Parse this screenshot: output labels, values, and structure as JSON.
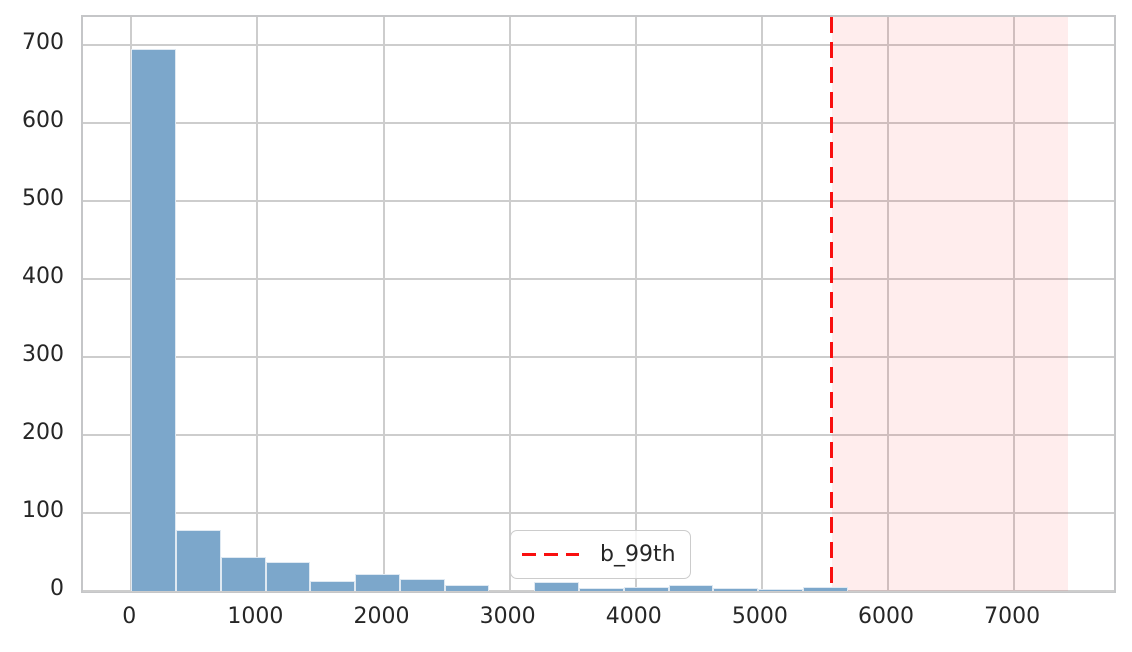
{
  "figure": {
    "background": "#ffffff",
    "legend": {
      "entries": [
        {
          "label": "b_99th",
          "marker": "red-dashed-line"
        }
      ],
      "position": "lower center"
    }
  },
  "chart_data": {
    "type": "bar",
    "subtype": "histogram",
    "title": "",
    "xlabel": "",
    "ylabel": "",
    "bin_start": 0,
    "bin_width": 355,
    "counts": [
      695,
      78,
      44,
      37,
      13,
      22,
      15,
      8,
      0,
      11,
      4,
      5,
      8,
      4,
      3,
      5,
      0,
      0,
      0,
      0,
      0
    ],
    "x_ticks": [
      0,
      1000,
      2000,
      3000,
      4000,
      5000,
      6000,
      7000
    ],
    "y_ticks": [
      0,
      100,
      200,
      300,
      400,
      500,
      600,
      700
    ],
    "xlim": [
      -383,
      7792
    ],
    "ylim": [
      0,
      736
    ],
    "grid": true,
    "vline": {
      "x": 5553,
      "label": "b_99th",
      "style": "dashed"
    },
    "shaded_region": {
      "from": 5553,
      "to": 7424
    },
    "colors": {
      "bar_fill": "#7ca7cb",
      "bar_edge": "#dfe9f2",
      "grid": "#cdcdcd",
      "spine": "#c5c6c8",
      "vline": "#f90f0f",
      "shaded_fill": "rgba(255,0,0,0.07)",
      "tick_text": "#262626",
      "legend_border": "#cccccc",
      "legend_background": "rgba(255,255,255,0.8)"
    }
  }
}
